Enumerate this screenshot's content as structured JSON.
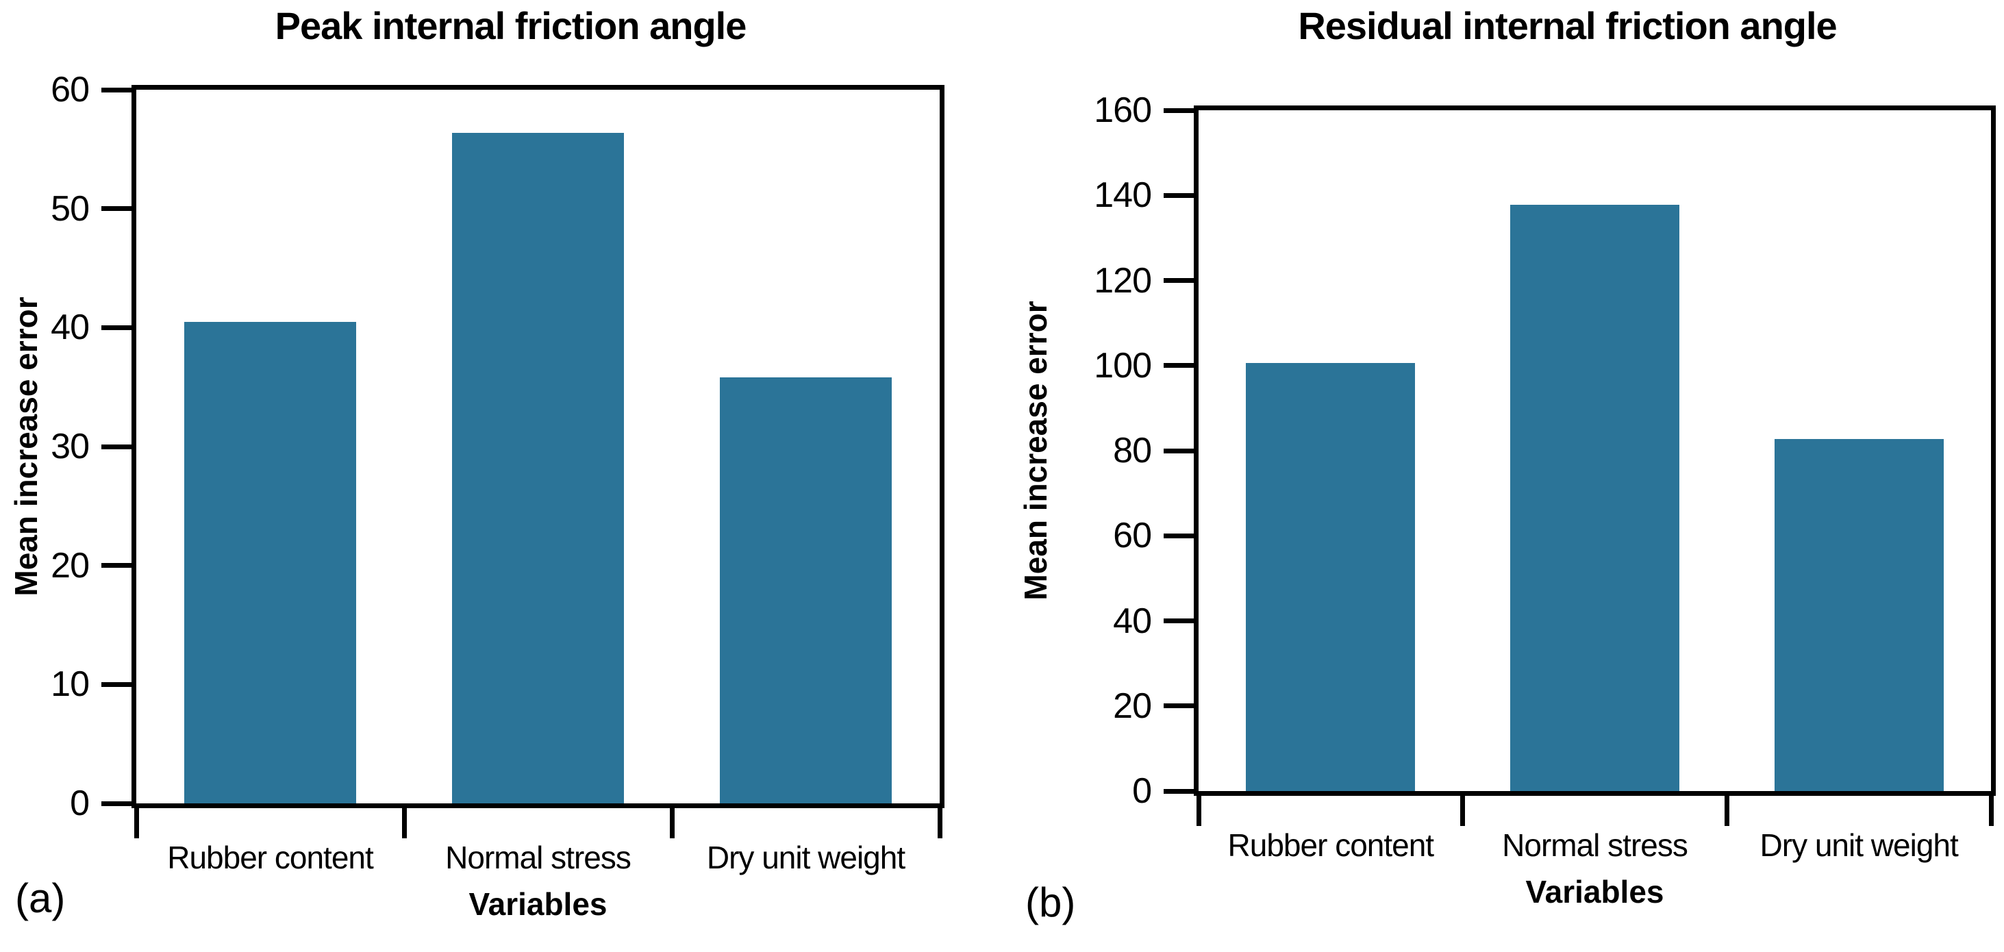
{
  "page": {
    "background": "#FFFFFF",
    "axis_color": "#000000"
  },
  "chart_data": [
    {
      "type": "bar",
      "panel_label": "(a)",
      "title": "Peak internal friction angle",
      "xlabel": "Variables",
      "ylabel": "Mean increase error",
      "categories": [
        "Rubber content",
        "Normal stress",
        "Dry unit weight"
      ],
      "values": [
        40.5,
        56.4,
        35.8
      ],
      "ylim": [
        0,
        60
      ],
      "yticks": [
        0,
        10,
        20,
        30,
        40,
        50,
        60
      ],
      "bar_color": "#2B7498",
      "grid": false,
      "legend_position": "none"
    },
    {
      "type": "bar",
      "panel_label": "(b)",
      "title": "Residual internal friction angle",
      "xlabel": "Variables",
      "ylabel": "Mean increase error",
      "categories": [
        "Rubber content",
        "Normal stress",
        "Dry unit weight"
      ],
      "values": [
        100.6,
        137.8,
        82.8
      ],
      "ylim": [
        0,
        160
      ],
      "yticks": [
        0,
        20,
        40,
        60,
        80,
        100,
        120,
        140,
        160
      ],
      "bar_color": "#2B7498",
      "grid": false,
      "legend_position": "none"
    }
  ]
}
